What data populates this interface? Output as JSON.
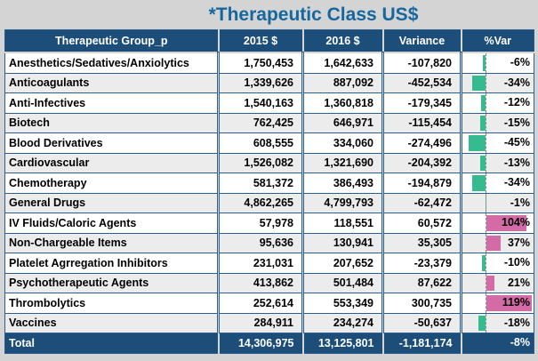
{
  "title": "*Therapeutic Class US$",
  "colors": {
    "title_text": "#15679E",
    "header_bg": "#1D4E79",
    "header_text": "#FFFFFF",
    "row_bg": "#FFFFFF",
    "row_alt_bg": "#ECECEC",
    "gridline": "#2B5F8E",
    "total_bg": "#1D4E79",
    "bar_positive": "#D36BA7",
    "bar_negative": "#35BB8F",
    "page_bg": "#D4D4D4"
  },
  "table": {
    "columns": [
      "Therapeutic Group_p",
      "2015 $",
      "2016 $",
      "Variance",
      "%Var"
    ],
    "rows": [
      {
        "group": "Anesthetics/Sedatives/Anxiolytics",
        "y2015": "1,750,453",
        "y2016": "1,642,633",
        "variance": "-107,820",
        "pvar_label": "-6%",
        "pvar": -6
      },
      {
        "group": "Anticoagulants",
        "y2015": "1,339,626",
        "y2016": "887,092",
        "variance": "-452,534",
        "pvar_label": "-34%",
        "pvar": -34
      },
      {
        "group": "Anti-Infectives",
        "y2015": "1,540,163",
        "y2016": "1,360,818",
        "variance": "-179,345",
        "pvar_label": "-12%",
        "pvar": -12
      },
      {
        "group": "Biotech",
        "y2015": "762,425",
        "y2016": "646,971",
        "variance": "-115,454",
        "pvar_label": "-15%",
        "pvar": -15
      },
      {
        "group": "Blood Derivatives",
        "y2015": "608,555",
        "y2016": "334,060",
        "variance": "-274,496",
        "pvar_label": "-45%",
        "pvar": -45
      },
      {
        "group": "Cardiovascular",
        "y2015": "1,526,082",
        "y2016": "1,321,690",
        "variance": "-204,392",
        "pvar_label": "-13%",
        "pvar": -13
      },
      {
        "group": "Chemotherapy",
        "y2015": "581,372",
        "y2016": "386,493",
        "variance": "-194,879",
        "pvar_label": "-34%",
        "pvar": -34
      },
      {
        "group": "General Drugs",
        "y2015": "4,862,265",
        "y2016": "4,799,793",
        "variance": "-62,472",
        "pvar_label": "-1%",
        "pvar": -1
      },
      {
        "group": "IV Fluids/Caloric Agents",
        "y2015": "57,978",
        "y2016": "118,551",
        "variance": "60,572",
        "pvar_label": "104%",
        "pvar": 104
      },
      {
        "group": "Non-Chargeable Items",
        "y2015": "95,636",
        "y2016": "130,941",
        "variance": "35,305",
        "pvar_label": "37%",
        "pvar": 37
      },
      {
        "group": "Platelet Agrregation Inhibitors",
        "y2015": "231,031",
        "y2016": "207,652",
        "variance": "-23,379",
        "pvar_label": "-10%",
        "pvar": -10
      },
      {
        "group": "Psychotherapeutic Agents",
        "y2015": "413,862",
        "y2016": "501,484",
        "variance": "87,622",
        "pvar_label": "21%",
        "pvar": 21
      },
      {
        "group": "Thrombolytics",
        "y2015": "252,614",
        "y2016": "553,349",
        "variance": "300,735",
        "pvar_label": "119%",
        "pvar": 119
      },
      {
        "group": "Vaccines",
        "y2015": "284,911",
        "y2016": "234,274",
        "variance": "-50,637",
        "pvar_label": "-18%",
        "pvar": -18
      }
    ],
    "total": {
      "group": "Total",
      "y2015": "14,306,975",
      "y2016": "13,125,801",
      "variance": "-1,181,174",
      "pvar_label": "-8%"
    }
  },
  "chart_data": {
    "type": "table",
    "title": "*Therapeutic Class US$",
    "columns": [
      "Therapeutic Group_p",
      "2015 $",
      "2016 $",
      "Variance",
      "%Var"
    ],
    "rows": [
      [
        "Anesthetics/Sedatives/Anxiolytics",
        1750453,
        1642633,
        -107820,
        -6
      ],
      [
        "Anticoagulants",
        1339626,
        887092,
        -452534,
        -34
      ],
      [
        "Anti-Infectives",
        1540163,
        1360818,
        -179345,
        -12
      ],
      [
        "Biotech",
        762425,
        646971,
        -115454,
        -15
      ],
      [
        "Blood Derivatives",
        608555,
        334060,
        -274496,
        -45
      ],
      [
        "Cardiovascular",
        1526082,
        1321690,
        -204392,
        -13
      ],
      [
        "Chemotherapy",
        581372,
        386493,
        -194879,
        -34
      ],
      [
        "General Drugs",
        4862265,
        4799793,
        -62472,
        -1
      ],
      [
        "IV Fluids/Caloric Agents",
        57978,
        118551,
        60572,
        104
      ],
      [
        "Non-Chargeable Items",
        95636,
        130941,
        35305,
        37
      ],
      [
        "Platelet Agrregation Inhibitors",
        231031,
        207652,
        -23379,
        -10
      ],
      [
        "Psychotherapeutic Agents",
        413862,
        501484,
        87622,
        21
      ],
      [
        "Thrombolytics",
        252614,
        553349,
        300735,
        119
      ],
      [
        "Vaccines",
        284911,
        234274,
        -50637,
        -18
      ]
    ],
    "total_row": [
      "Total",
      14306975,
      13125801,
      -1181174,
      -8
    ],
    "databars": {
      "column": "%Var",
      "positive_color": "#D36BA7",
      "negative_color": "#35BB8F",
      "axis": "dashed vertical line, negatives extend left (green), positives extend right (pink)",
      "scale_max_positive": 119,
      "scale_min_negative": -45
    }
  }
}
